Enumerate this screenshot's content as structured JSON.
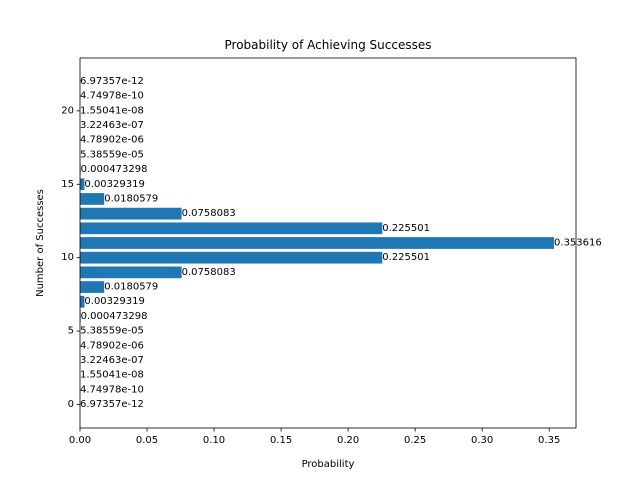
{
  "chart_data": {
    "type": "bar",
    "orientation": "horizontal",
    "title": "Probability of Achieving Successes",
    "xlabel": "Probability",
    "ylabel": "Number of Successes",
    "xlim": [
      0,
      0.37
    ],
    "ylim": [
      -1.6,
      23.6
    ],
    "xticks": [
      0,
      0.05,
      0.1,
      0.15,
      0.2,
      0.25,
      0.3,
      0.35
    ],
    "xtick_labels": [
      "0.00",
      "0.05",
      "0.10",
      "0.15",
      "0.20",
      "0.25",
      "0.30",
      "0.35"
    ],
    "yticks": [
      0,
      5,
      10,
      15,
      20
    ],
    "ytick_labels": [
      "0",
      "5",
      "10",
      "15",
      "20"
    ],
    "bar_color": "#1f77b4",
    "grid": false,
    "categories": [
      0,
      1,
      2,
      3,
      4,
      5,
      6,
      7,
      8,
      9,
      10,
      11,
      12,
      13,
      14,
      15,
      16,
      17,
      18,
      19,
      20,
      21,
      22
    ],
    "values": [
      6.97357e-12,
      4.74978e-10,
      1.55041e-08,
      3.22463e-07,
      4.78902e-06,
      5.38559e-05,
      0.000473298,
      0.00329319,
      0.0180579,
      0.0758083,
      0.225501,
      0.353616,
      0.225501,
      0.0758083,
      0.0180579,
      0.00329319,
      0.000473298,
      5.38559e-05,
      4.78902e-06,
      3.22463e-07,
      1.55041e-08,
      4.74978e-10,
      6.97357e-12
    ],
    "labels": [
      "6.97357e-12",
      "4.74978e-10",
      "1.55041e-08",
      "3.22463e-07",
      "4.78902e-06",
      "5.38559e-05",
      "0.000473298",
      "0.00329319",
      "0.0180579",
      "0.0758083",
      "0.225501",
      "0.353616",
      "0.225501",
      "0.0758083",
      "0.0180579",
      "0.00329319",
      "0.000473298",
      "5.38559e-05",
      "4.78902e-06",
      "3.22463e-07",
      "1.55041e-08",
      "4.74978e-10",
      "6.97357e-12"
    ]
  }
}
